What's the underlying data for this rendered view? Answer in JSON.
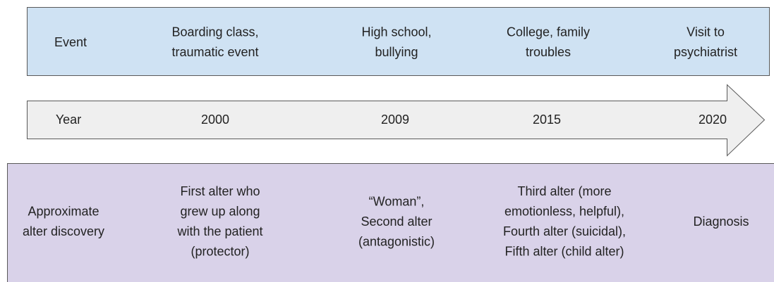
{
  "rows": {
    "event": {
      "label": [
        "Event"
      ],
      "cells": [
        [
          "Boarding class,",
          "traumatic event"
        ],
        [
          "High school,",
          "bullying"
        ],
        [
          "College, family",
          "troubles"
        ],
        [
          "Visit to",
          "psychiatrist"
        ]
      ]
    },
    "year": {
      "label": [
        "Year"
      ],
      "cells": [
        [
          "2000"
        ],
        [
          "2009"
        ],
        [
          "2015"
        ],
        [
          "2020"
        ]
      ]
    },
    "alter": {
      "label": [
        "Approximate",
        "alter discovery"
      ],
      "cells": [
        [
          "First alter who",
          "grew up along",
          "with the patient",
          "(protector)"
        ],
        [
          "“Woman”,",
          "Second alter",
          "(antagonistic)"
        ],
        [
          "Third alter (more",
          "emotionless, helpful),",
          "Fourth alter (suicidal),",
          "Fifth alter (child alter)"
        ],
        [
          "Diagnosis"
        ]
      ]
    }
  }
}
